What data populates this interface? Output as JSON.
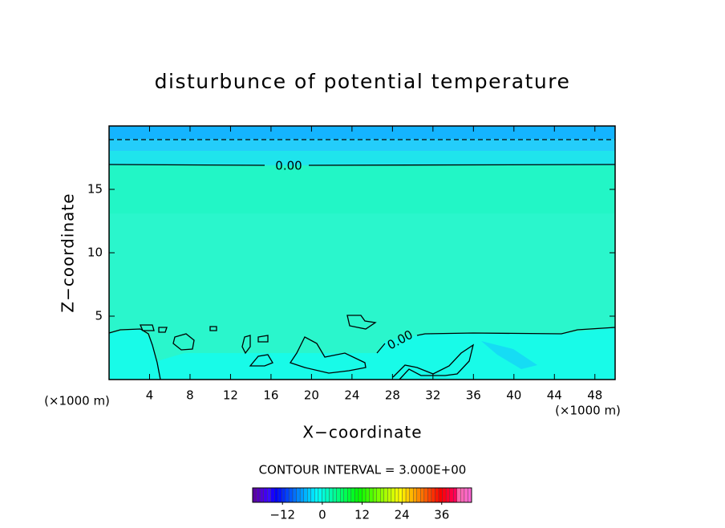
{
  "chart_data": {
    "type": "contour",
    "title": "disturbunce of potential temperature",
    "xlabel": "X−coordinate",
    "ylabel": "Z−coordinate",
    "xunit": "(×1000 m)",
    "yunit": "(×1000 m)",
    "xlim": [
      0,
      50
    ],
    "xticks": [
      4,
      8,
      12,
      16,
      20,
      24,
      28,
      32,
      36,
      40,
      44,
      48
    ],
    "ylim": [
      0,
      20
    ],
    "yticks": [
      5,
      10,
      15
    ],
    "contour_labels": [
      "0.00",
      "0.00"
    ],
    "contour_interval": "CONTOUR INTERVAL = 3.000E+00",
    "colorbar": {
      "lim": [
        -21,
        45
      ],
      "ticks": [
        {
          "value": -12,
          "label": "−12"
        },
        0,
        12,
        24,
        36
      ]
    }
  }
}
